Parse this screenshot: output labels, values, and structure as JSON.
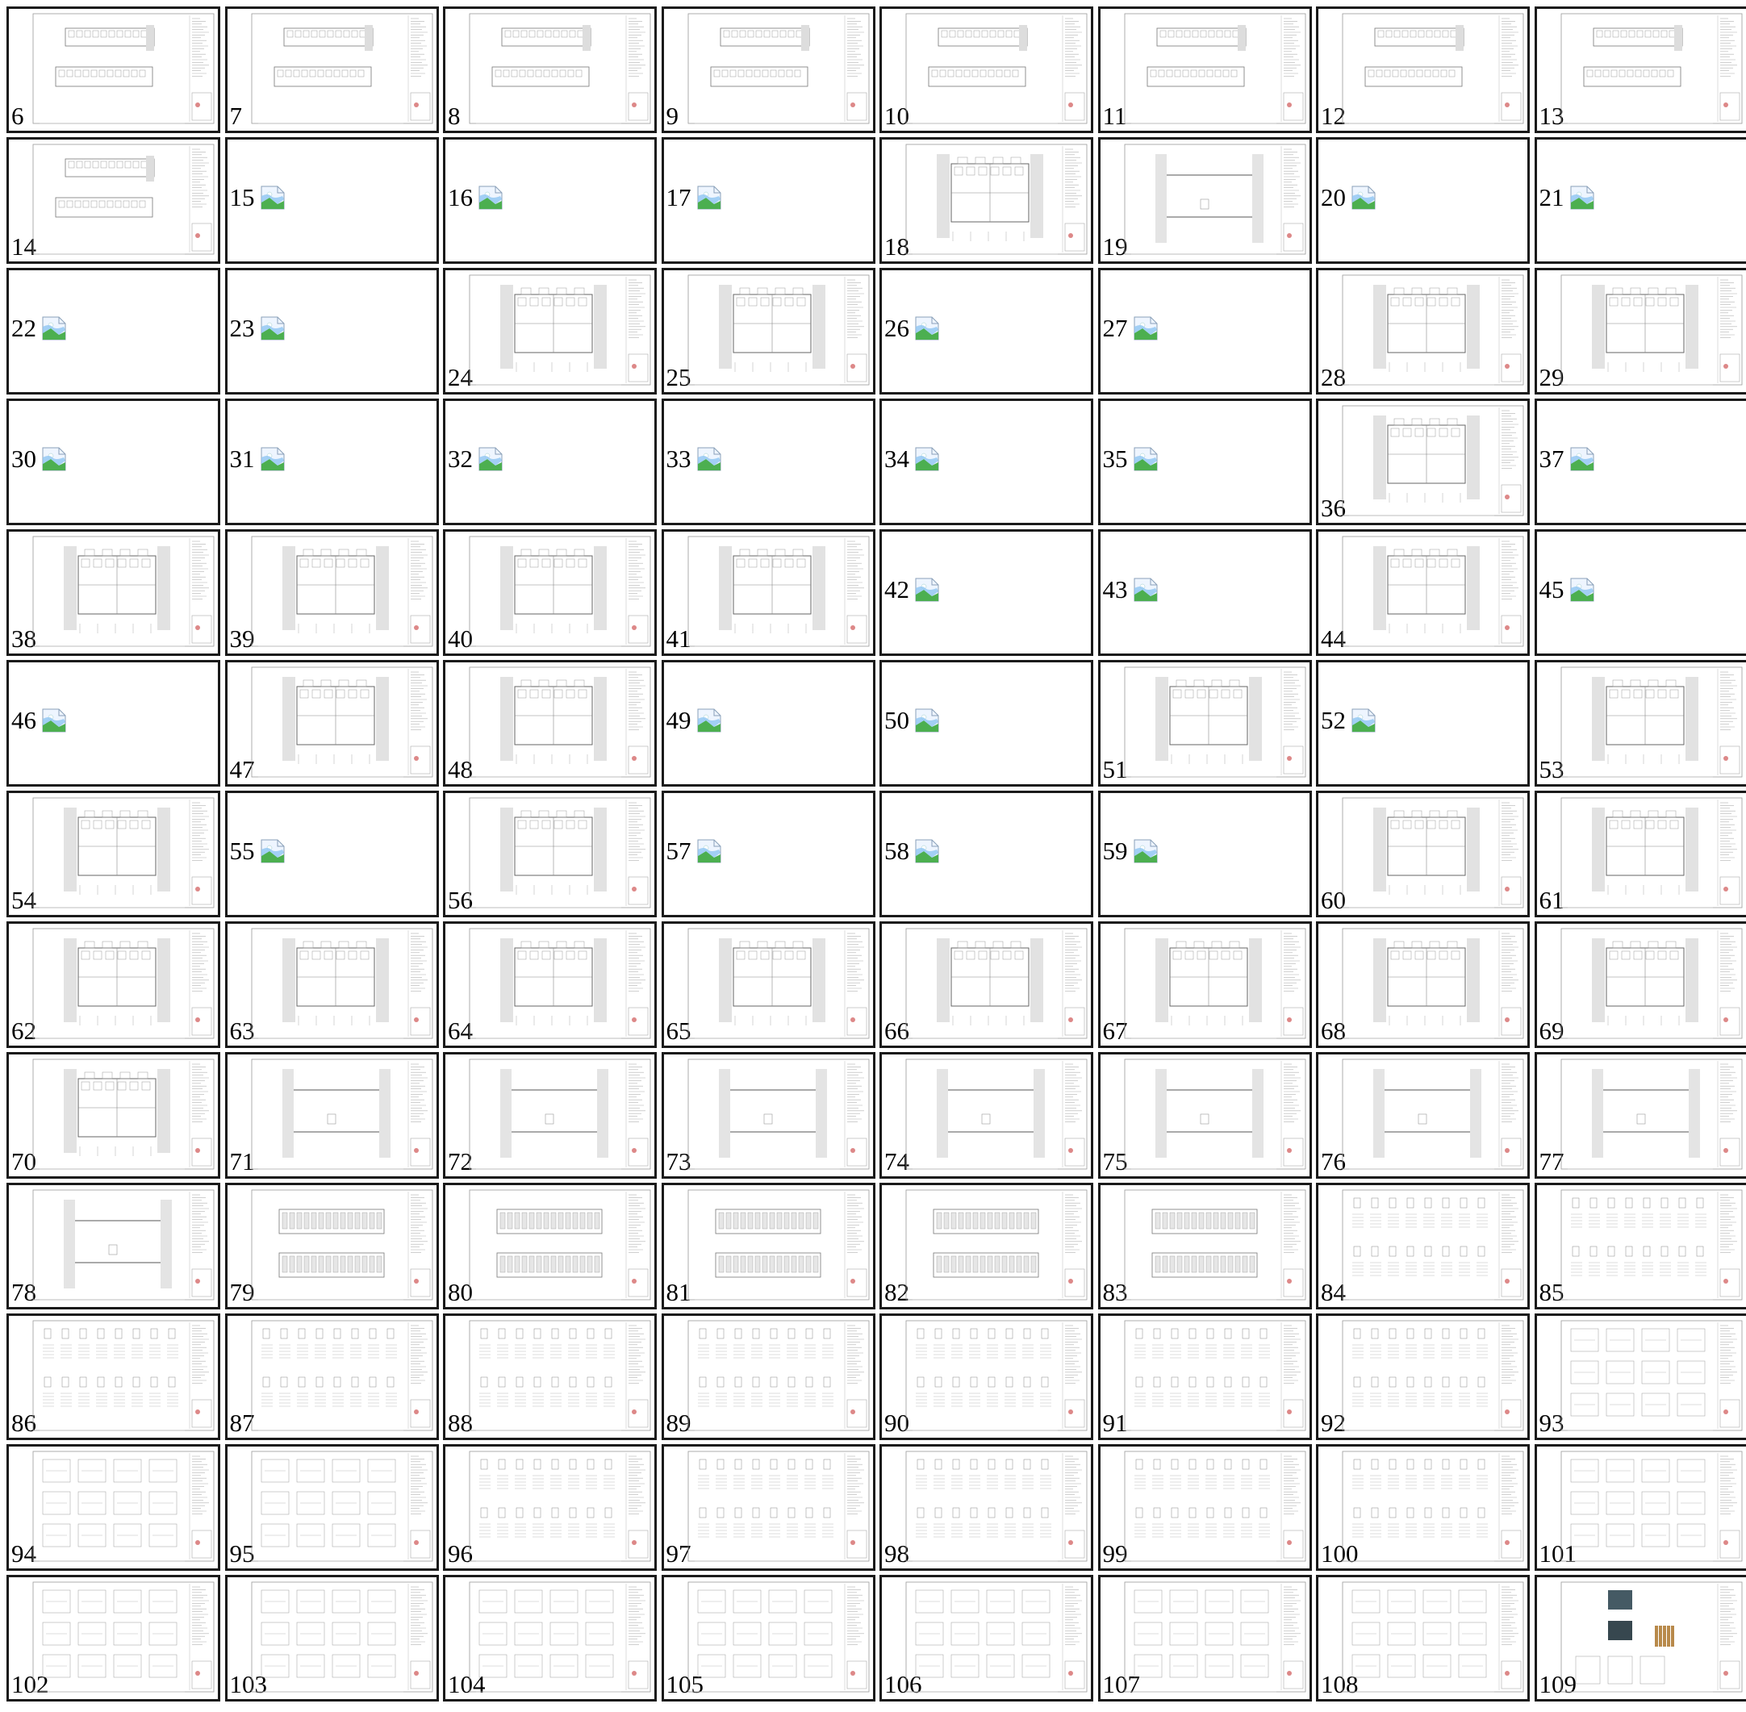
{
  "colors": {
    "border": "#1a1a1a",
    "background": "#ffffff",
    "icon_green": "#4caf50",
    "icon_sky": "#8ec5f2"
  },
  "pages": [
    {
      "label": "6",
      "thumb": "plan-double"
    },
    {
      "label": "7",
      "thumb": "plan-double"
    },
    {
      "label": "8",
      "thumb": "plan-double"
    },
    {
      "label": "9",
      "thumb": "plan-double"
    },
    {
      "label": "10",
      "thumb": "plan-double"
    },
    {
      "label": "11",
      "thumb": "plan-double"
    },
    {
      "label": "12",
      "thumb": "plan-double"
    },
    {
      "label": "13",
      "thumb": "plan-double"
    },
    {
      "label": "14",
      "thumb": "plan-double"
    },
    {
      "label": "15",
      "thumb": "broken"
    },
    {
      "label": "16",
      "thumb": "broken"
    },
    {
      "label": "17",
      "thumb": "broken"
    },
    {
      "label": "18",
      "thumb": "plan"
    },
    {
      "label": "19",
      "thumb": "section"
    },
    {
      "label": "20",
      "thumb": "broken"
    },
    {
      "label": "21",
      "thumb": "broken"
    },
    {
      "label": "22",
      "thumb": "broken"
    },
    {
      "label": "23",
      "thumb": "broken"
    },
    {
      "label": "24",
      "thumb": "plan"
    },
    {
      "label": "25",
      "thumb": "plan"
    },
    {
      "label": "26",
      "thumb": "broken"
    },
    {
      "label": "27",
      "thumb": "broken"
    },
    {
      "label": "28",
      "thumb": "plan"
    },
    {
      "label": "29",
      "thumb": "plan"
    },
    {
      "label": "30",
      "thumb": "broken"
    },
    {
      "label": "31",
      "thumb": "broken"
    },
    {
      "label": "32",
      "thumb": "broken"
    },
    {
      "label": "33",
      "thumb": "broken"
    },
    {
      "label": "34",
      "thumb": "broken"
    },
    {
      "label": "35",
      "thumb": "broken"
    },
    {
      "label": "36",
      "thumb": "plan"
    },
    {
      "label": "37",
      "thumb": "broken"
    },
    {
      "label": "38",
      "thumb": "plan"
    },
    {
      "label": "39",
      "thumb": "plan"
    },
    {
      "label": "40",
      "thumb": "plan"
    },
    {
      "label": "41",
      "thumb": "plan"
    },
    {
      "label": "42",
      "thumb": "broken"
    },
    {
      "label": "43",
      "thumb": "broken"
    },
    {
      "label": "44",
      "thumb": "plan"
    },
    {
      "label": "45",
      "thumb": "broken"
    },
    {
      "label": "46",
      "thumb": "broken"
    },
    {
      "label": "47",
      "thumb": "plan"
    },
    {
      "label": "48",
      "thumb": "plan"
    },
    {
      "label": "49",
      "thumb": "broken"
    },
    {
      "label": "50",
      "thumb": "broken"
    },
    {
      "label": "51",
      "thumb": "plan"
    },
    {
      "label": "52",
      "thumb": "broken"
    },
    {
      "label": "53",
      "thumb": "plan"
    },
    {
      "label": "54",
      "thumb": "plan"
    },
    {
      "label": "55",
      "thumb": "broken"
    },
    {
      "label": "56",
      "thumb": "plan"
    },
    {
      "label": "57",
      "thumb": "broken"
    },
    {
      "label": "58",
      "thumb": "broken"
    },
    {
      "label": "59",
      "thumb": "broken"
    },
    {
      "label": "60",
      "thumb": "plan"
    },
    {
      "label": "61",
      "thumb": "plan"
    },
    {
      "label": "62",
      "thumb": "plan"
    },
    {
      "label": "63",
      "thumb": "plan"
    },
    {
      "label": "64",
      "thumb": "plan"
    },
    {
      "label": "65",
      "thumb": "plan"
    },
    {
      "label": "66",
      "thumb": "plan"
    },
    {
      "label": "67",
      "thumb": "plan"
    },
    {
      "label": "68",
      "thumb": "plan"
    },
    {
      "label": "69",
      "thumb": "plan"
    },
    {
      "label": "70",
      "thumb": "plan"
    },
    {
      "label": "71",
      "thumb": "section"
    },
    {
      "label": "72",
      "thumb": "section"
    },
    {
      "label": "73",
      "thumb": "section"
    },
    {
      "label": "74",
      "thumb": "section"
    },
    {
      "label": "75",
      "thumb": "section"
    },
    {
      "label": "76",
      "thumb": "section"
    },
    {
      "label": "77",
      "thumb": "section"
    },
    {
      "label": "78",
      "thumb": "section"
    },
    {
      "label": "79",
      "thumb": "elevation"
    },
    {
      "label": "80",
      "thumb": "elevation"
    },
    {
      "label": "81",
      "thumb": "elevation"
    },
    {
      "label": "82",
      "thumb": "elevation"
    },
    {
      "label": "83",
      "thumb": "elevation"
    },
    {
      "label": "84",
      "thumb": "schedule"
    },
    {
      "label": "85",
      "thumb": "schedule"
    },
    {
      "label": "86",
      "thumb": "schedule"
    },
    {
      "label": "87",
      "thumb": "schedule"
    },
    {
      "label": "88",
      "thumb": "schedule"
    },
    {
      "label": "89",
      "thumb": "schedule"
    },
    {
      "label": "90",
      "thumb": "schedule"
    },
    {
      "label": "91",
      "thumb": "schedule"
    },
    {
      "label": "92",
      "thumb": "schedule"
    },
    {
      "label": "93",
      "thumb": "detail"
    },
    {
      "label": "94",
      "thumb": "detail"
    },
    {
      "label": "95",
      "thumb": "detail"
    },
    {
      "label": "96",
      "thumb": "schedule"
    },
    {
      "label": "97",
      "thumb": "schedule"
    },
    {
      "label": "98",
      "thumb": "schedule"
    },
    {
      "label": "99",
      "thumb": "schedule"
    },
    {
      "label": "100",
      "thumb": "schedule"
    },
    {
      "label": "101",
      "thumb": "detail"
    },
    {
      "label": "102",
      "thumb": "detail"
    },
    {
      "label": "103",
      "thumb": "detail"
    },
    {
      "label": "104",
      "thumb": "detail"
    },
    {
      "label": "105",
      "thumb": "detail"
    },
    {
      "label": "106",
      "thumb": "detail"
    },
    {
      "label": "107",
      "thumb": "detail"
    },
    {
      "label": "108",
      "thumb": "detail"
    },
    {
      "label": "109",
      "thumb": "render"
    }
  ]
}
